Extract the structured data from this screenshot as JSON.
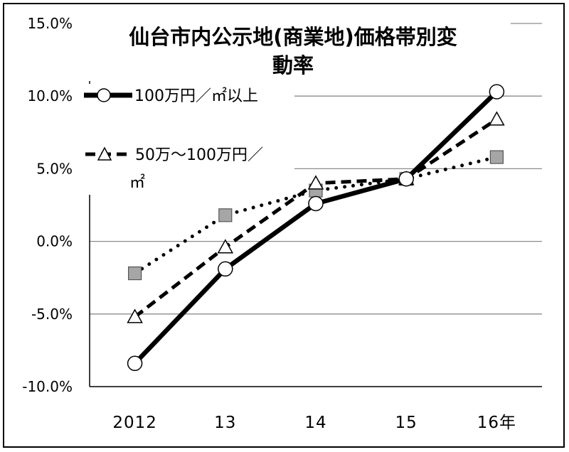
{
  "chart_data": {
    "type": "line",
    "title_line1": "仙台市内公示地(商業地)価格帯別変",
    "title_line2": "動率",
    "categories": [
      "2012",
      "13",
      "14",
      "15",
      "16年"
    ],
    "y_ticks": [
      "15.0%",
      "10.0%",
      "5.0%",
      "0.0%",
      "-5.0%",
      "-10.0%"
    ],
    "ylim": [
      -10,
      15
    ],
    "y_step": 5,
    "grid": true,
    "legend_position": "top-left",
    "series": [
      {
        "name": "100万円／㎡以上",
        "values": [
          -8.4,
          -1.9,
          2.6,
          4.3,
          10.3
        ],
        "line_style": "solid",
        "marker": "circle",
        "color": "#000000",
        "marker_fill": "#ffffff"
      },
      {
        "name": "50万～100万円／㎡",
        "values": [
          -5.2,
          -0.4,
          4.0,
          4.3,
          8.4
        ],
        "line_style": "dashed",
        "marker": "triangle",
        "color": "#000000",
        "marker_fill": "#ffffff"
      },
      {
        "name": "",
        "values": [
          -2.2,
          1.8,
          3.5,
          4.3,
          5.8
        ],
        "line_style": "dotted",
        "marker": "square",
        "color": "#000000",
        "marker_fill": "#a6a6a6"
      }
    ],
    "legend": {
      "entry1": "100万円／㎡以上",
      "entry2_line1": "50万～100万円／",
      "entry2_line2": "㎡"
    }
  }
}
